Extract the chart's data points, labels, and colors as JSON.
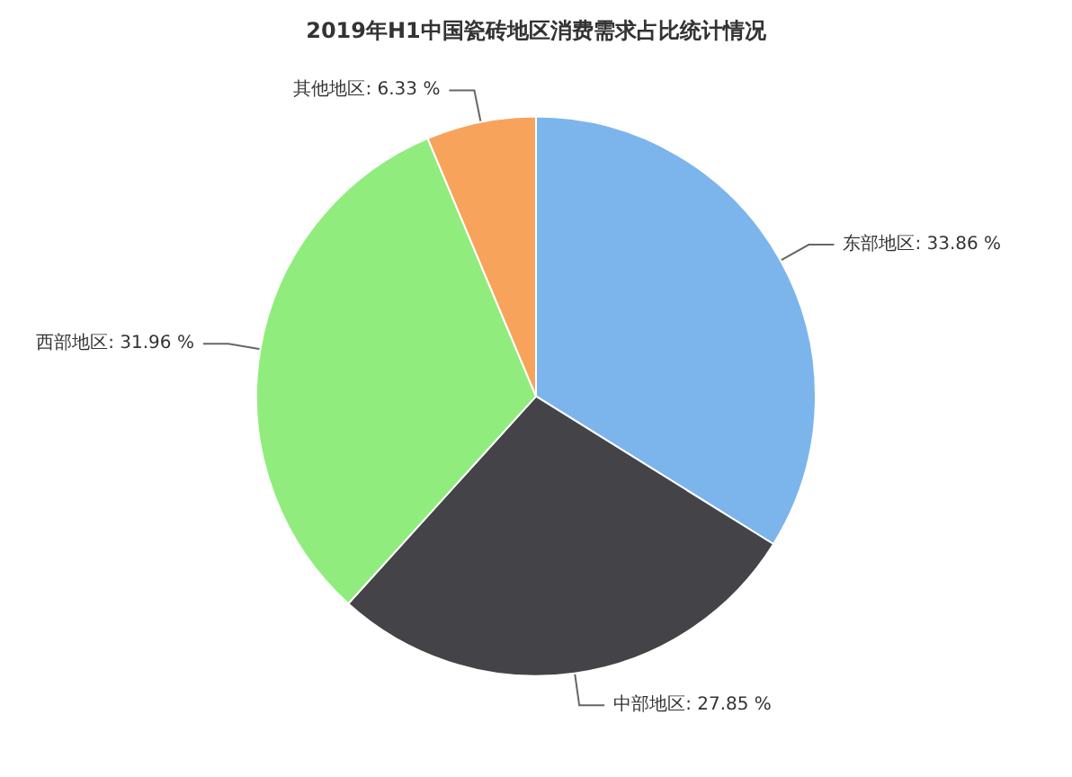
{
  "chart_data": {
    "type": "pie",
    "title": "2019年H1中国瓷砖地区消费需求占比统计情况",
    "categories": [
      "东部地区",
      "中部地区",
      "西部地区",
      "其他地区"
    ],
    "values": [
      33.86,
      27.85,
      31.96,
      6.33
    ],
    "value_labels": [
      "33.86 %",
      "27.85 %",
      "31.96 %",
      "6.33 %"
    ],
    "colors": [
      "#7cb5ec",
      "#434348",
      "#90ed7d",
      "#f7a35c"
    ],
    "legend": false
  }
}
